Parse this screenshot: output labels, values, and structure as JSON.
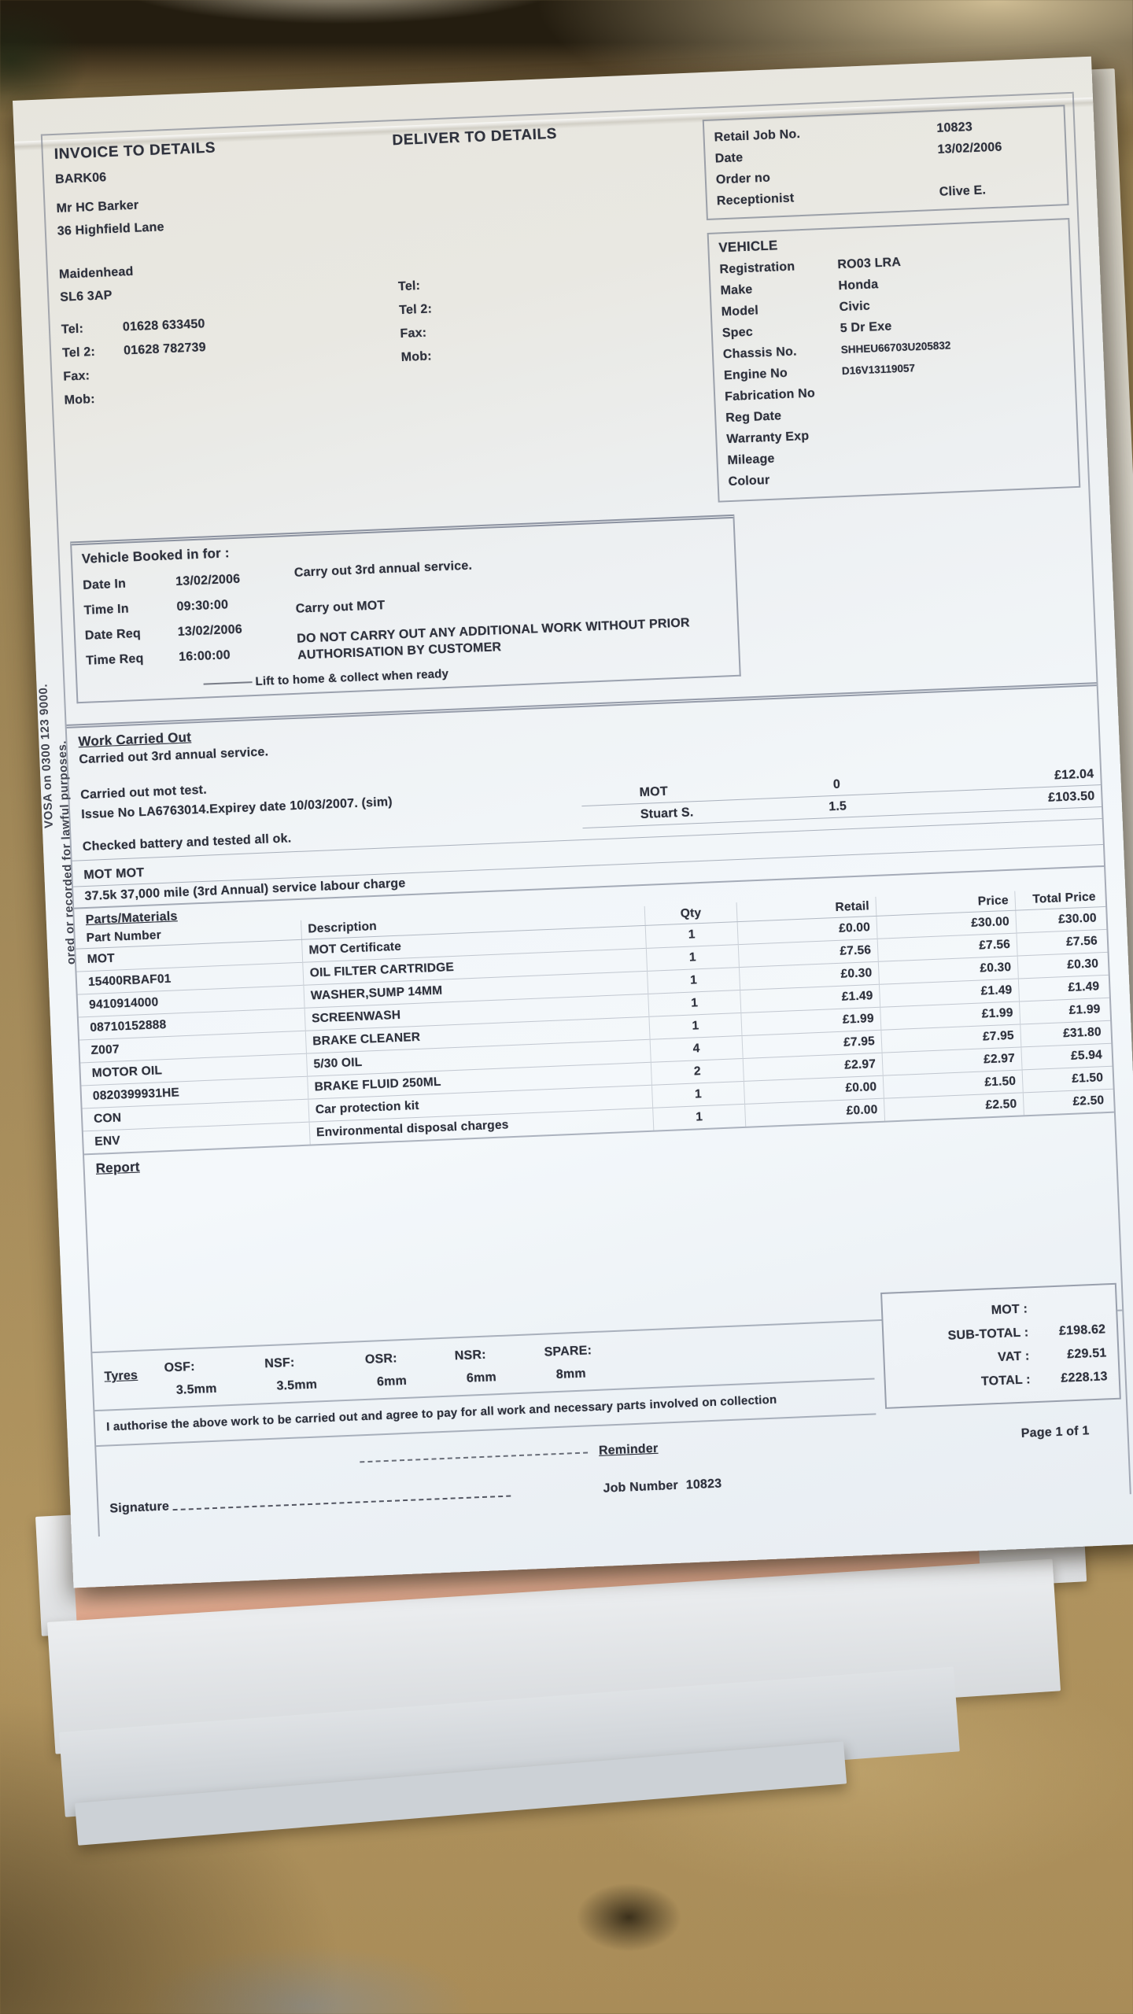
{
  "colors": {
    "paper": "#f3f6f9",
    "ink": "#2e313c",
    "leather": "#a68c5c",
    "salmon_sheet": "#eab79c",
    "form_line": "#6a7284"
  },
  "invoice_to": {
    "title": "INVOICE TO DETAILS",
    "account": "BARK06",
    "name": "Mr HC Barker",
    "address1": "36 Highfield Lane",
    "town": "Maidenhead",
    "postcode": "SL6 3AP",
    "tel_label": "Tel:",
    "tel": "01628 633450",
    "tel2_label": "Tel 2:",
    "tel2": "01628 782739",
    "fax_label": "Fax:",
    "fax": "",
    "mob_label": "Mob:",
    "mob": ""
  },
  "deliver_to": {
    "title": "DELIVER TO DETAILS",
    "tel_label": "Tel:",
    "tel": "",
    "tel2_label": "Tel 2:",
    "tel2": "",
    "fax_label": "Fax:",
    "fax": "",
    "mob_label": "Mob:",
    "mob": ""
  },
  "job_box": {
    "rows": [
      {
        "label": "Retail Job No.",
        "value": "10823"
      },
      {
        "label": "Date",
        "value": "13/02/2006"
      },
      {
        "label": "Order no",
        "value": ""
      },
      {
        "label": "Receptionist",
        "value": "Clive E."
      }
    ]
  },
  "vehicle_box": {
    "title": "VEHICLE",
    "rows": [
      {
        "label": "Registration",
        "value": "RO03 LRA"
      },
      {
        "label": "Make",
        "value": "Honda"
      },
      {
        "label": "Model",
        "value": "Civic"
      },
      {
        "label": "Spec",
        "value": "5 Dr Exe"
      },
      {
        "label": "Chassis No.",
        "value": "SHHEU66703U205832"
      },
      {
        "label": "Engine No",
        "value": "D16V13119057"
      },
      {
        "label": "Fabrication No",
        "value": ""
      },
      {
        "label": "Reg Date",
        "value": ""
      },
      {
        "label": "Warranty Exp",
        "value": ""
      },
      {
        "label": "Mileage",
        "value": ""
      },
      {
        "label": "Colour",
        "value": ""
      }
    ]
  },
  "booked_in": {
    "title": "Vehicle Booked in for :",
    "rows": [
      {
        "label": "Date In",
        "value": "13/02/2006"
      },
      {
        "label": "Time In",
        "value": "09:30:00"
      },
      {
        "label": "Date Req",
        "value": "13/02/2006"
      },
      {
        "label": "Time Req",
        "value": "16:00:00"
      }
    ],
    "notes": [
      "Carry out 3rd annual service.",
      "Carry out MOT",
      "DO NOT CARRY OUT ANY ADDITIONAL WORK WITHOUT PRIOR AUTHORISATION BY CUSTOMER"
    ],
    "footer_note": "Lift to home & collect when ready"
  },
  "work_carried_out": {
    "title": "Work Carried Out",
    "lines": [
      "Carried out 3rd annual service.",
      "Carried out mot test.",
      "Issue No LA6763014.Expirey date 10/03/2007. (sim)",
      "Checked battery and tested all ok."
    ],
    "labour_rows": [
      {
        "name": "MOT",
        "hours": "0",
        "price": "£12.04"
      },
      {
        "name": "Stuart S.",
        "hours": "1.5",
        "price": "£103.50"
      }
    ],
    "mot_line": "MOT MOT",
    "labour_line": "37.5k 37,000 mile (3rd Annual) service labour charge"
  },
  "parts": {
    "section_title": "Parts/Materials",
    "headers": {
      "part": "Part Number",
      "desc": "Description",
      "qty": "Qty",
      "retail": "Retail",
      "price": "Price",
      "total": "Total Price"
    },
    "rows": [
      {
        "part": "MOT",
        "desc": "MOT Certificate",
        "qty": "1",
        "retail": "£0.00",
        "price": "£30.00",
        "total": "£30.00"
      },
      {
        "part": "15400RBAF01",
        "desc": "OIL FILTER CARTRIDGE",
        "qty": "1",
        "retail": "£7.56",
        "price": "£7.56",
        "total": "£7.56"
      },
      {
        "part": "9410914000",
        "desc": "WASHER,SUMP 14MM",
        "qty": "1",
        "retail": "£0.30",
        "price": "£0.30",
        "total": "£0.30"
      },
      {
        "part": "08710152888",
        "desc": "SCREENWASH",
        "qty": "1",
        "retail": "£1.49",
        "price": "£1.49",
        "total": "£1.49"
      },
      {
        "part": "Z007",
        "desc": "BRAKE CLEANER",
        "qty": "1",
        "retail": "£1.99",
        "price": "£1.99",
        "total": "£1.99"
      },
      {
        "part": "MOTOR OIL",
        "desc": "5/30 OIL",
        "qty": "4",
        "retail": "£7.95",
        "price": "£7.95",
        "total": "£31.80"
      },
      {
        "part": "0820399931HE",
        "desc": "BRAKE FLUID 250ML",
        "qty": "2",
        "retail": "£2.97",
        "price": "£2.97",
        "total": "£5.94"
      },
      {
        "part": "CON",
        "desc": "Car protection kit",
        "qty": "1",
        "retail": "£0.00",
        "price": "£1.50",
        "total": "£1.50"
      },
      {
        "part": "ENV",
        "desc": "Environmental disposal charges",
        "qty": "1",
        "retail": "£0.00",
        "price": "£2.50",
        "total": "£2.50"
      }
    ]
  },
  "report": {
    "title": "Report"
  },
  "totals": {
    "rows": [
      {
        "label": "MOT :",
        "value": ""
      },
      {
        "label": "SUB-TOTAL :",
        "value": "£198.62"
      },
      {
        "label": "VAT :",
        "value": "£29.51"
      },
      {
        "label": "TOTAL :",
        "value": "£228.13"
      }
    ]
  },
  "tyres": {
    "title": "Tyres",
    "items": [
      {
        "label": "OSF:",
        "value": "3.5mm"
      },
      {
        "label": "NSF:",
        "value": "3.5mm"
      },
      {
        "label": "OSR:",
        "value": "6mm"
      },
      {
        "label": "NSR:",
        "value": "6mm"
      },
      {
        "label": "SPARE:",
        "value": "8mm"
      }
    ]
  },
  "authorisation": "I authorise the above work to be carried out and agree to pay for all work and necessary parts involved on collection",
  "footer": {
    "signature_label": "Signature",
    "reminder_label": "Reminder",
    "job_label": "Job Number",
    "job_number": "10823",
    "page_label": "Page 1 of 1"
  },
  "margin_text": {
    "line1": "VOSA on 0300 123 9000.",
    "line2": "ored or recorded for lawful purposes."
  }
}
